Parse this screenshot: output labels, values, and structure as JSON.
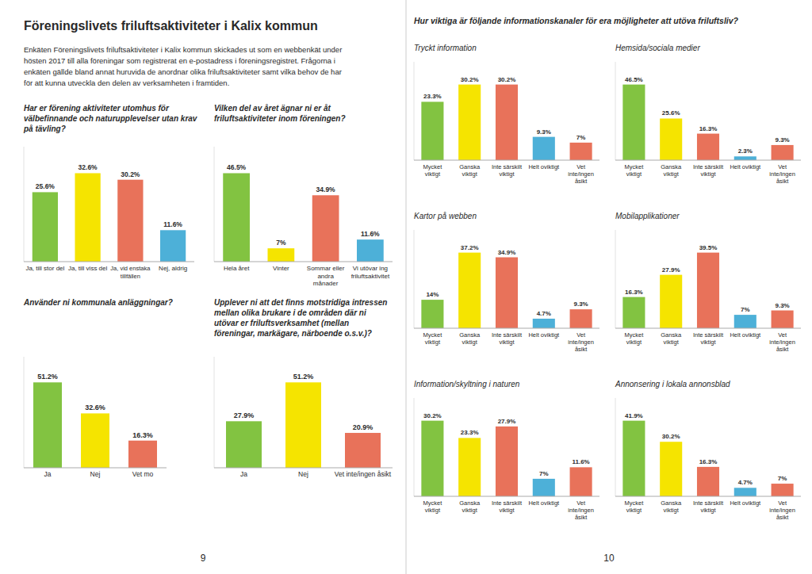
{
  "title": "Föreningslivets friluftsaktiviteter i Kalix kommun",
  "annotations": [
    "Enkäten Föreningslivets friluftsaktiviteter i Kalix kommun skickades ut som en webbenkät under",
    "hösten 2017 till alla föreningar som registrerat en e-postadress i föreningsregistret. Frågorna i",
    "enkäten gällde bland annat huruvida de anordnar olika friluftsaktiviteter samt vilka behov de har",
    "för att kunna utveckla den delen av verksamheten i framtiden.",
    "Hur viktiga är följande informationskanaler för era möjligheter att utöva friluftsliv?",
    "9",
    "10"
  ],
  "chart_data": [
    {
      "type": "bar",
      "title": "Har er förening aktiviteter utomhus för\nvälbefinnande och naturupplevelser utan krav\npå tävling?",
      "categories": [
        "Ja, till stor del",
        "Ja, till viss del",
        "Ja, vid enstaka\ntillfällen",
        "Nej, aldrig"
      ],
      "values": [
        25.6,
        32.6,
        30.2,
        11.6
      ],
      "value_labels": [
        "25.6%",
        "32.6%",
        "30.2%",
        "11.6%"
      ],
      "colors": [
        "#82c341",
        "#f5e400",
        "#e8725a",
        "#4db0d8"
      ],
      "ylim": [
        0,
        42.38
      ],
      "yticks": [],
      "grid": false,
      "data_labels": true,
      "tick_labels": "x"
    },
    {
      "type": "bar",
      "title": "Vilken del av året ägnar ni er åt\nfriluftsaktiviteter inom föreningen?",
      "categories": [
        "Hela året",
        "Vinter",
        "Sommar eller\nandra\nmånader",
        "Vi utövar ing\nfriluftsaktivitet"
      ],
      "values": [
        46.5,
        7.0,
        34.9,
        11.6
      ],
      "value_labels": [
        "46.5%",
        "7%",
        "34.9%",
        "11.6%"
      ],
      "colors": [
        "#82c341",
        "#f5e400",
        "#e8725a",
        "#4db0d8"
      ],
      "ylim": [
        0,
        60.45
      ],
      "yticks": [],
      "grid": false,
      "data_labels": true,
      "tick_labels": "x"
    },
    {
      "type": "bar",
      "title": "Använder ni kommunala anläggningar?",
      "categories": [
        "Ja",
        "Nej",
        "Vet mo"
      ],
      "values": [
        51.2,
        32.6,
        16.3
      ],
      "value_labels": [
        "51.2%",
        "32.6%",
        "16.3%"
      ],
      "colors": [
        "#82c341",
        "#f5e400",
        "#e8725a"
      ],
      "ylim": [
        0,
        66.56
      ],
      "yticks": [],
      "grid": false,
      "data_labels": true,
      "tick_labels": "x"
    },
    {
      "type": "bar",
      "title": "Upplever ni att det finns motstridiga intressen\nmellan olika brukare i de områden där ni\nutövar er friluftsverksamhet (mellan\nföreningar, markägare, närboende o.s.v.)?",
      "categories": [
        "Ja",
        "Nej",
        "Vet inte/ingen åsikt"
      ],
      "values": [
        27.9,
        51.2,
        20.9
      ],
      "value_labels": [
        "27.9%",
        "51.2%",
        "20.9%"
      ],
      "colors": [
        "#82c341",
        "#f5e400",
        "#e8725a"
      ],
      "ylim": [
        0,
        66.56
      ],
      "yticks": [],
      "grid": false,
      "data_labels": true,
      "tick_labels": "x"
    },
    {
      "type": "bar",
      "title": "Tryckt information",
      "categories": [
        "Mycket\nviktigt",
        "Ganska\nviktigt",
        "Inte särskilt\nviktigt",
        "Helt oviktigt",
        "Vet\ninte/ingen\nåsikt"
      ],
      "values": [
        23.3,
        30.2,
        30.2,
        9.3,
        7.0
      ],
      "value_labels": [
        "23.3%",
        "30.2%",
        "30.2%",
        "9.3%",
        "7%"
      ],
      "colors": [
        "#82c341",
        "#f5e400",
        "#e8725a",
        "#4db0d8",
        "#e8725a"
      ],
      "ylim": [
        0,
        39.26
      ],
      "yticks": [],
      "grid": false,
      "data_labels": true,
      "tick_labels": "x"
    },
    {
      "type": "bar",
      "title": "Hemsida/sociala medier",
      "categories": [
        "Mycket\nviktigt",
        "Ganska\nviktigt",
        "Inte särskilt\nviktigt",
        "Helt oviktigt",
        "Vet\ninte/ingen\nåsikt"
      ],
      "values": [
        46.5,
        25.6,
        16.3,
        2.3,
        9.3
      ],
      "value_labels": [
        "46.5%",
        "25.6%",
        "16.3%",
        "2.3%",
        "9.3%"
      ],
      "colors": [
        "#82c341",
        "#f5e400",
        "#e8725a",
        "#4db0d8",
        "#e8725a"
      ],
      "ylim": [
        0,
        60.45
      ],
      "yticks": [],
      "grid": false,
      "data_labels": true,
      "tick_labels": "x"
    },
    {
      "type": "bar",
      "title": "Kartor på webben",
      "categories": [
        "Mycket\nviktigt",
        "Ganska\nviktigt",
        "Inte särskilt\nviktigt",
        "Helt oviktigt",
        "Vet\ninte/ingen\nåsikt"
      ],
      "values": [
        14.0,
        37.2,
        34.9,
        4.7,
        9.3
      ],
      "value_labels": [
        "14%",
        "37.2%",
        "34.9%",
        "4.7%",
        "9.3%"
      ],
      "colors": [
        "#82c341",
        "#f5e400",
        "#e8725a",
        "#4db0d8",
        "#e8725a"
      ],
      "ylim": [
        0,
        48.36
      ],
      "yticks": [],
      "grid": false,
      "data_labels": true,
      "tick_labels": "x"
    },
    {
      "type": "bar",
      "title": "Mobilapplikationer",
      "categories": [
        "Mycket\nviktigt",
        "Ganska\nviktigt",
        "Inte särskilt\nviktigt",
        "Helt oviktigt",
        "Vet\ninte/ingen\nåsikt"
      ],
      "values": [
        16.3,
        27.9,
        39.5,
        7.0,
        9.3
      ],
      "value_labels": [
        "16.3%",
        "27.9%",
        "39.5%",
        "7%",
        "9.3%"
      ],
      "colors": [
        "#82c341",
        "#f5e400",
        "#e8725a",
        "#4db0d8",
        "#e8725a"
      ],
      "ylim": [
        0,
        51.35
      ],
      "yticks": [],
      "grid": false,
      "data_labels": true,
      "tick_labels": "x"
    },
    {
      "type": "bar",
      "title": "Information/skyltning i naturen",
      "categories": [
        "Mycket\nviktigt",
        "Ganska\nviktigt",
        "Inte särskilt\nviktigt",
        "Helt oviktigt",
        "Vet\ninte/ingen\nåsikt"
      ],
      "values": [
        30.2,
        23.3,
        27.9,
        7.0,
        11.6
      ],
      "value_labels": [
        "30.2%",
        "23.3%",
        "27.9%",
        "7%",
        "11.6%"
      ],
      "colors": [
        "#82c341",
        "#f5e400",
        "#e8725a",
        "#4db0d8",
        "#e8725a"
      ],
      "ylim": [
        0,
        39.26
      ],
      "yticks": [],
      "grid": false,
      "data_labels": true,
      "tick_labels": "x"
    },
    {
      "type": "bar",
      "title": "Annonsering i lokala annonsblad",
      "categories": [
        "Mycket\nviktigt",
        "Ganska\nviktigt",
        "Inte särskilt\nviktigt",
        "Helt oviktigt",
        "Vet\ninte/ingen\nåsikt"
      ],
      "values": [
        41.9,
        30.2,
        16.3,
        4.7,
        7.0
      ],
      "value_labels": [
        "41.9%",
        "30.2%",
        "16.3%",
        "4.7%",
        "7%"
      ],
      "colors": [
        "#82c341",
        "#f5e400",
        "#e8725a",
        "#4db0d8",
        "#e8725a"
      ],
      "ylim": [
        0,
        54.47
      ],
      "yticks": [],
      "grid": false,
      "data_labels": true,
      "tick_labels": "x"
    }
  ]
}
